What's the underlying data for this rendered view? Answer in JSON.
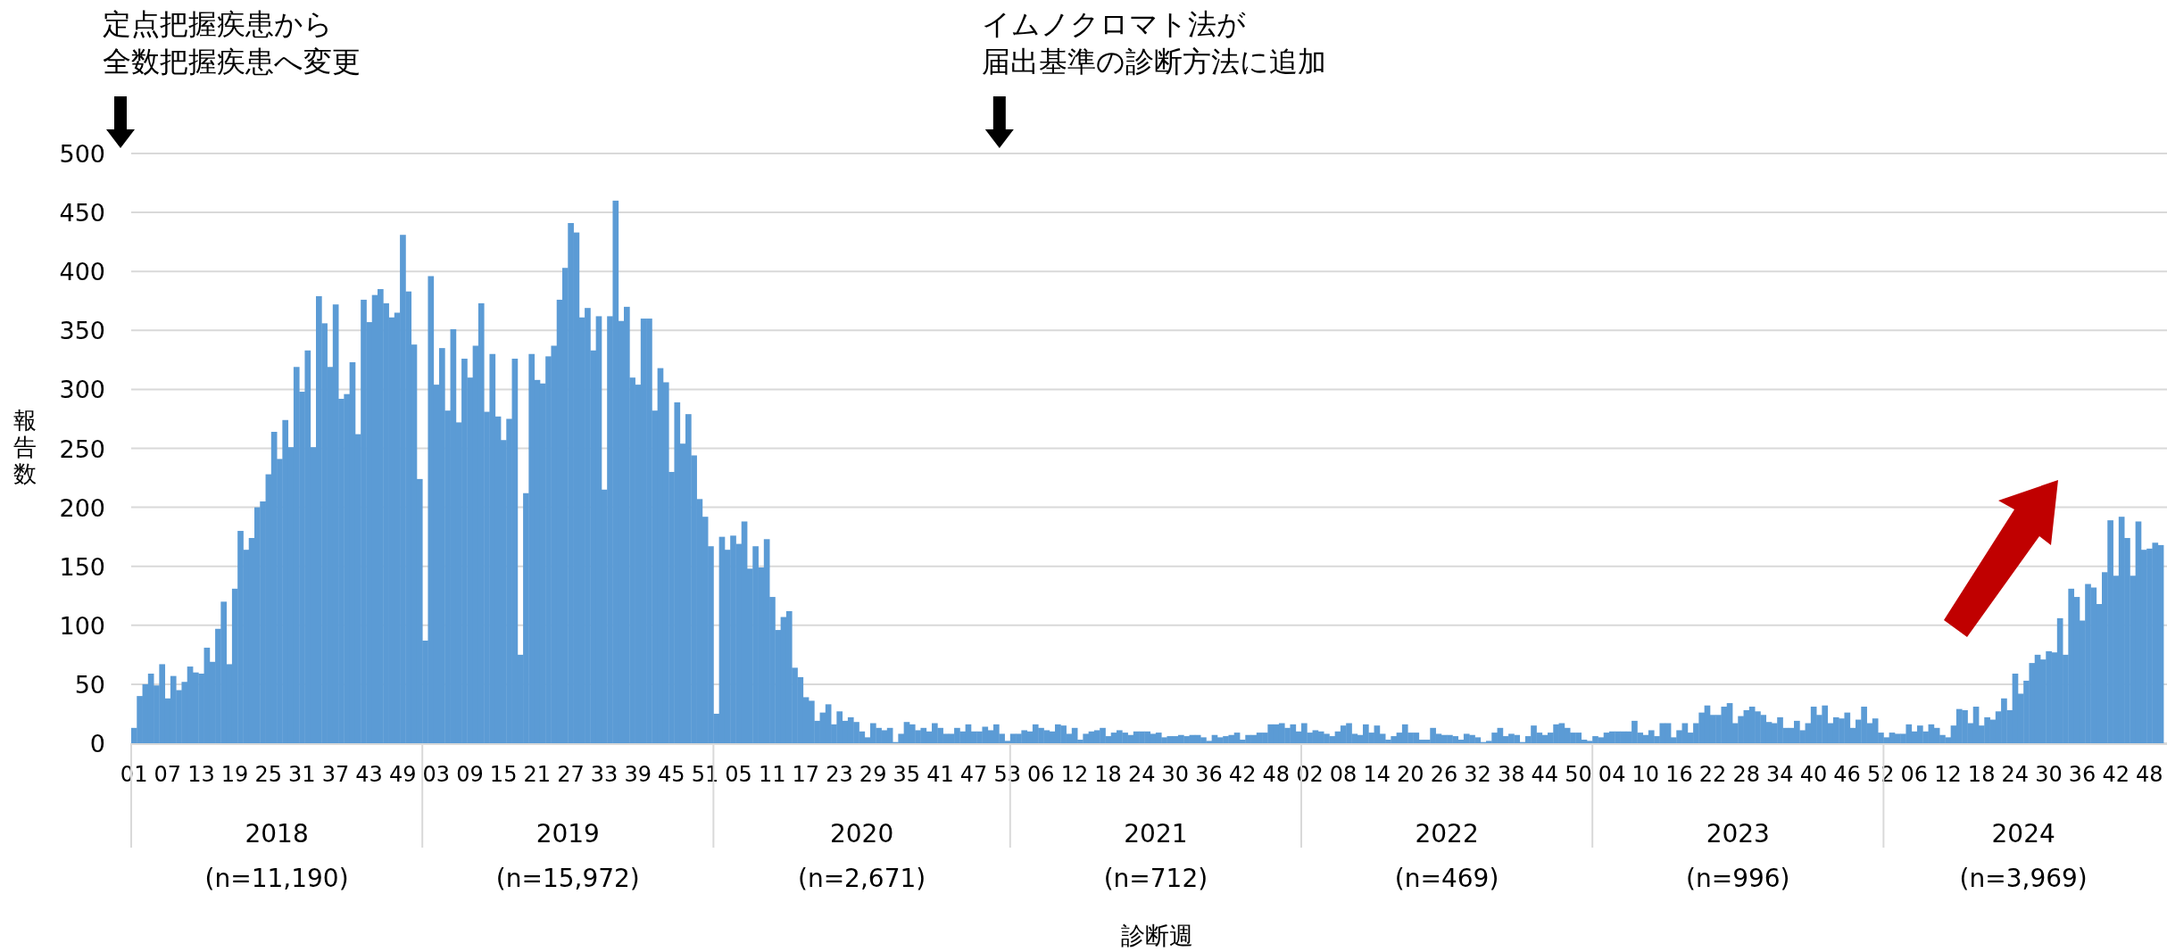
{
  "chart_data": {
    "type": "bar",
    "ylabel": "報告数",
    "color": "#5b9bd5",
    "grid": "y",
    "ylim": [
      0,
      500
    ],
    "yticks": [
      0,
      50,
      100,
      150,
      200,
      250,
      300,
      350,
      400,
      450,
      500
    ],
    "annotations": [
      "定点把握疾患から",
      "全数把握疾患へ変更",
      "イムノクロマト法が",
      "届出基準の診断方法に追加",
      "診断週",
      "2018\n(n=11,190)",
      "2019\n(n=15,972)",
      "2020\n(n=2,671)",
      "2021\n(n=712)",
      "2022\n(n=469)",
      "2023\n(n=996)",
      "2024\n(n=3,969)"
    ],
    "categories": [
      "01",
      null,
      null,
      null,
      null,
      null,
      "07",
      null,
      null,
      null,
      null,
      null,
      "13",
      null,
      null,
      null,
      null,
      null,
      "19",
      null,
      null,
      null,
      null,
      null,
      "25",
      null,
      null,
      null,
      null,
      null,
      "31",
      null,
      null,
      null,
      null,
      null,
      "37",
      null,
      null,
      null,
      null,
      null,
      "43",
      null,
      null,
      null,
      null,
      null,
      "49",
      null,
      null,
      null,
      null,
      null,
      "03",
      null,
      null,
      null,
      null,
      null,
      "09",
      null,
      null,
      null,
      null,
      null,
      "15",
      null,
      null,
      null,
      null,
      null,
      "21",
      null,
      null,
      null,
      null,
      null,
      "27",
      null,
      null,
      null,
      null,
      null,
      "33",
      null,
      null,
      null,
      null,
      null,
      "39",
      null,
      null,
      null,
      null,
      null,
      "45",
      null,
      null,
      null,
      null,
      null,
      "51",
      null,
      null,
      null,
      null,
      null,
      "05",
      null,
      null,
      null,
      null,
      null,
      "11",
      null,
      null,
      null,
      null,
      null,
      "17",
      null,
      null,
      null,
      null,
      null,
      "23",
      null,
      null,
      null,
      null,
      null,
      "29",
      null,
      null,
      null,
      null,
      null,
      "35",
      null,
      null,
      null,
      null,
      null,
      "41",
      null,
      null,
      null,
      null,
      null,
      "47",
      null,
      null,
      null,
      null,
      null,
      "53",
      null,
      null,
      null,
      null,
      null,
      "06",
      null,
      null,
      null,
      null,
      null,
      "12",
      null,
      null,
      null,
      null,
      null,
      "18",
      null,
      null,
      null,
      null,
      null,
      "24",
      null,
      null,
      null,
      null,
      null,
      "30",
      null,
      null,
      null,
      null,
      null,
      "36",
      null,
      null,
      null,
      null,
      null,
      "42",
      null,
      null,
      null,
      null,
      null,
      "48",
      null,
      null,
      null,
      null,
      null,
      "02",
      null,
      null,
      null,
      null,
      null,
      "08",
      null,
      null,
      null,
      null,
      null,
      "14",
      null,
      null,
      null,
      null,
      null,
      "20",
      null,
      null,
      null,
      null,
      null,
      "26",
      null,
      null,
      null,
      null,
      null,
      "32",
      null,
      null,
      null,
      null,
      null,
      "38",
      null,
      null,
      null,
      null,
      null,
      "44",
      null,
      null,
      null,
      null,
      null,
      "50",
      null,
      null,
      null,
      null,
      null,
      "04",
      null,
      null,
      null,
      null,
      null,
      "10",
      null,
      null,
      null,
      null,
      null,
      "16",
      null,
      null,
      null,
      null,
      null,
      "22",
      null,
      null,
      null,
      null,
      null,
      "28",
      null,
      null,
      null,
      null,
      null,
      "34",
      null,
      null,
      null,
      null,
      null,
      "40",
      null,
      null,
      null,
      null,
      null,
      "46",
      null,
      null,
      null,
      null,
      null,
      "52",
      null,
      null,
      null,
      null,
      null,
      "06",
      null,
      null,
      null,
      null,
      null,
      "12",
      null,
      null,
      null,
      null,
      null,
      "18",
      null,
      null,
      null,
      null,
      null,
      "24",
      null,
      null,
      null,
      null,
      null,
      "30",
      null,
      null,
      null,
      null,
      null,
      "36",
      null,
      null,
      null,
      null,
      null,
      "42",
      null,
      null,
      null,
      null,
      null,
      "48",
      null,
      null
    ],
    "values": [
      13,
      40,
      50,
      59,
      49,
      67,
      38,
      57,
      45,
      52,
      65,
      60,
      59,
      81,
      69,
      97,
      120,
      67,
      131,
      180,
      164,
      174,
      200,
      205,
      228,
      264,
      241,
      274,
      251,
      319,
      298,
      333,
      251,
      379,
      356,
      319,
      372,
      292,
      296,
      323,
      262,
      376,
      357,
      380,
      385,
      373,
      361,
      365,
      431,
      383,
      338,
      224,
      87,
      396,
      304,
      335,
      282,
      351,
      272,
      326,
      310,
      337,
      373,
      281,
      330,
      277,
      257,
      275,
      326,
      75,
      212,
      330,
      308,
      305,
      328,
      337,
      376,
      403,
      441,
      433,
      361,
      369,
      333,
      362,
      215,
      362,
      460,
      358,
      370,
      310,
      304,
      360,
      360,
      282,
      318,
      306,
      230,
      289,
      254,
      279,
      244,
      207,
      192,
      167,
      25,
      175,
      164,
      176,
      169,
      188,
      148,
      167,
      149,
      173,
      124,
      96,
      107,
      112,
      64,
      56,
      39,
      36,
      19,
      26,
      33,
      16,
      27,
      19,
      22,
      18,
      10,
      5,
      17,
      13,
      11,
      13,
      1,
      8,
      18,
      16,
      11,
      13,
      10,
      17,
      13,
      8,
      8,
      13,
      10,
      16,
      10,
      10,
      14,
      11,
      16,
      8,
      2,
      8,
      8,
      11,
      10,
      16,
      13,
      11,
      10,
      16,
      15,
      8,
      13,
      3,
      8,
      10,
      11,
      13,
      6,
      9,
      11,
      9,
      7,
      10,
      10,
      10,
      8,
      9,
      5,
      6,
      6,
      7,
      6,
      7,
      7,
      5,
      2,
      7,
      5,
      6,
      7,
      9,
      3,
      7,
      7,
      9,
      9,
      16,
      16,
      17,
      13,
      16,
      10,
      17,
      9,
      11,
      10,
      8,
      6,
      10,
      15,
      17,
      8,
      7,
      16,
      9,
      15,
      8,
      3,
      6,
      9,
      16,
      9,
      9,
      3,
      3,
      13,
      8,
      7,
      7,
      6,
      3,
      8,
      7,
      5,
      1,
      2,
      9,
      13,
      6,
      8,
      7,
      1,
      6,
      15,
      9,
      7,
      9,
      16,
      17,
      13,
      9,
      9,
      3,
      2,
      6,
      5,
      9,
      10,
      10,
      10,
      10,
      19,
      9,
      7,
      11,
      6,
      17,
      17,
      5,
      11,
      17,
      9,
      17,
      26,
      32,
      24,
      24,
      31,
      34,
      17,
      23,
      28,
      31,
      27,
      24,
      18,
      17,
      22,
      13,
      13,
      19,
      11,
      17,
      31,
      24,
      32,
      17,
      22,
      21,
      26,
      13,
      20,
      31,
      17,
      21,
      9,
      5,
      9,
      8,
      8,
      16,
      10,
      15,
      10,
      16,
      13,
      7,
      5,
      15,
      29,
      28,
      17,
      31,
      15,
      22,
      20,
      27,
      38,
      28,
      59,
      42,
      53,
      68,
      75,
      71,
      78,
      77,
      106,
      75,
      131,
      124,
      104,
      135,
      132,
      118,
      145,
      189,
      142,
      192,
      174,
      142,
      188,
      164,
      165,
      170,
      168
    ]
  }
}
